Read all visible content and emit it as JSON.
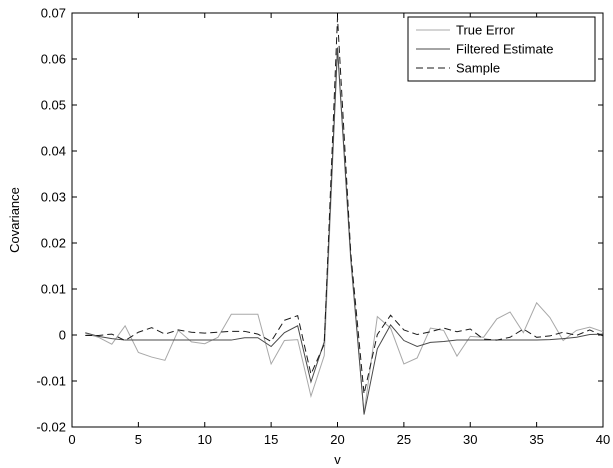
{
  "chart_data": {
    "type": "line",
    "xlabel": "v",
    "ylabel": "Covariance",
    "xlim": [
      0,
      40
    ],
    "ylim": [
      -0.02,
      0.07
    ],
    "xticks": [
      0,
      5,
      10,
      15,
      20,
      25,
      30,
      35,
      40
    ],
    "xtick_labels": [
      "0",
      "5",
      "10",
      "15",
      "20",
      "25",
      "30",
      "35",
      "40"
    ],
    "yticks": [
      -0.02,
      -0.01,
      0,
      0.01,
      0.02,
      0.03,
      0.04,
      0.05,
      0.06,
      0.07
    ],
    "ytick_labels": [
      "-0.02",
      "-0.01",
      "0",
      "0.01",
      "0.02",
      "0.03",
      "0.04",
      "0.05",
      "0.06",
      "0.07"
    ],
    "grid": false,
    "legend_position": "top-right",
    "x": [
      1,
      2,
      3,
      4,
      5,
      6,
      7,
      8,
      9,
      10,
      11,
      12,
      13,
      14,
      15,
      16,
      17,
      18,
      19,
      20,
      21,
      22,
      23,
      24,
      25,
      26,
      27,
      28,
      29,
      30,
      31,
      32,
      33,
      34,
      35,
      36,
      37,
      38,
      39,
      40
    ],
    "series": [
      {
        "name": "True Error",
        "color": "#a8a8a8",
        "dash": "solid",
        "values": [
          0.0003,
          -0.0005,
          -0.002,
          0.002,
          -0.0038,
          -0.0048,
          -0.0055,
          0.001,
          -0.0015,
          -0.0019,
          -0.0005,
          0.0045,
          0.0045,
          0.0045,
          -0.0063,
          -0.0012,
          -0.001,
          -0.0133,
          -0.0045,
          0.062,
          0.016,
          -0.017,
          0.004,
          0.0015,
          -0.0063,
          -0.005,
          0.0015,
          0.001,
          -0.0046,
          -0.0003,
          -0.0005,
          0.0035,
          0.005,
          0.0005,
          0.007,
          0.0038,
          -0.0012,
          0.001,
          0.0017,
          0.0007
        ]
      },
      {
        "name": "Filtered Estimate",
        "color": "#4a4a4a",
        "dash": "solid",
        "values": [
          0.0005,
          -0.0003,
          -0.0008,
          -0.0011,
          -0.0011,
          -0.0011,
          -0.0011,
          -0.0011,
          -0.0011,
          -0.0011,
          -0.0011,
          -0.0011,
          -0.0006,
          -0.0006,
          -0.0025,
          0.0005,
          0.002,
          -0.0102,
          -0.0015,
          0.0625,
          0.0168,
          -0.0173,
          -0.003,
          0.0022,
          -0.0012,
          -0.0025,
          -0.0016,
          -0.0014,
          -0.0011,
          -0.0011,
          -0.0011,
          -0.0011,
          -0.0011,
          -0.0011,
          -0.0011,
          -0.001,
          -0.0008,
          -0.0005,
          0.0001,
          0.0002
        ]
      },
      {
        "name": "Sample",
        "color": "#1a1a1a",
        "dash": "dashed",
        "values": [
          -0.0001,
          -0.0001,
          0.0002,
          -0.0012,
          0.0006,
          0.0016,
          0.0002,
          0.0011,
          0.0006,
          0.0004,
          0.0006,
          0.0008,
          0.0008,
          0.0002,
          -0.0014,
          0.0032,
          0.0042,
          -0.0085,
          -0.002,
          0.069,
          0.0178,
          -0.0128,
          0.0001,
          0.0043,
          0.0011,
          0.0001,
          0.0007,
          0.0015,
          0.0007,
          0.0013,
          -0.0009,
          -0.0011,
          -0.0005,
          0.0013,
          -0.0005,
          -0.0002,
          0.0006,
          -0.0001,
          0.0011,
          -0.0002
        ]
      }
    ]
  }
}
